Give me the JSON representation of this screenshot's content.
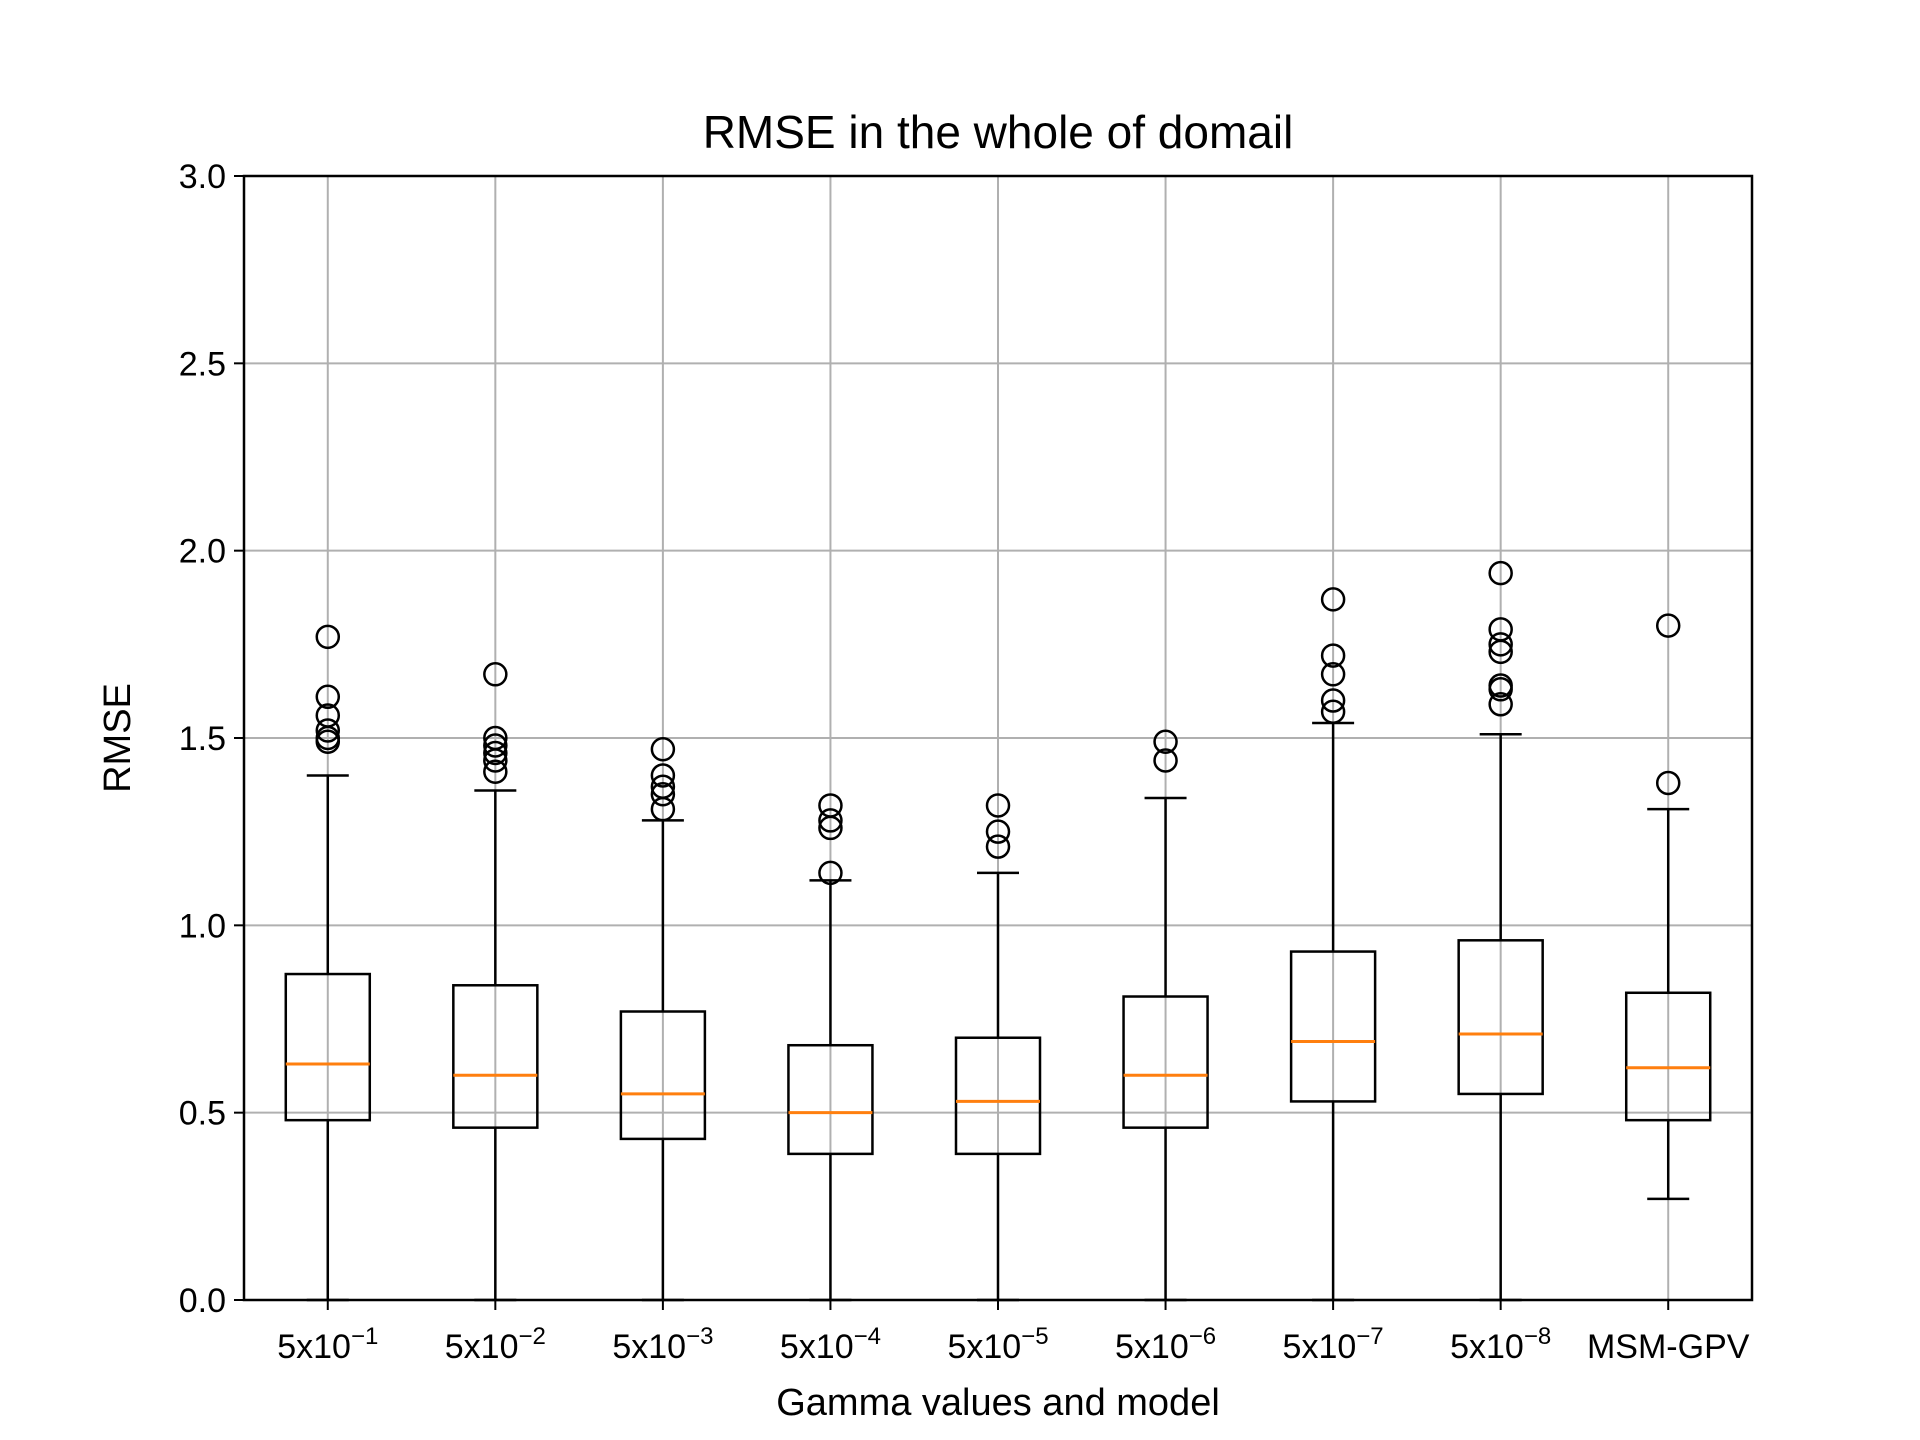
{
  "chart_data": {
    "type": "box",
    "title": "RMSE in the whole of domail",
    "xlabel": "Gamma values and model",
    "ylabel": "RMSE",
    "ylim": [
      0,
      3.0
    ],
    "yticks": [
      {
        "value": 0.0,
        "label": "0.0"
      },
      {
        "value": 0.5,
        "label": "0.5"
      },
      {
        "value": 1.0,
        "label": "1.0"
      },
      {
        "value": 1.5,
        "label": "1.5"
      },
      {
        "value": 2.0,
        "label": "2.0"
      },
      {
        "value": 2.5,
        "label": "2.5"
      },
      {
        "value": 3.0,
        "label": "3.0"
      }
    ],
    "grid": true,
    "colors": {
      "box": "#000000",
      "median": "#ff7f0e",
      "grid": "#b0b0b0"
    },
    "categories": [
      {
        "base": "5x10",
        "exp": "−1",
        "whislo": 0.0,
        "q1": 0.48,
        "med": 0.63,
        "q3": 0.87,
        "whishi": 1.4,
        "fliers": [
          1.49,
          1.5,
          1.52,
          1.56,
          1.61,
          1.77
        ]
      },
      {
        "base": "5x10",
        "exp": "−2",
        "whislo": 0.0,
        "q1": 0.46,
        "med": 0.6,
        "q3": 0.84,
        "whishi": 1.36,
        "fliers": [
          1.41,
          1.44,
          1.46,
          1.48,
          1.5,
          1.67
        ]
      },
      {
        "base": "5x10",
        "exp": "−3",
        "whislo": 0.0,
        "q1": 0.43,
        "med": 0.55,
        "q3": 0.77,
        "whishi": 1.28,
        "fliers": [
          1.31,
          1.35,
          1.37,
          1.4,
          1.47
        ]
      },
      {
        "base": "5x10",
        "exp": "−4",
        "whislo": 0.0,
        "q1": 0.39,
        "med": 0.5,
        "q3": 0.68,
        "whishi": 1.12,
        "fliers": [
          1.14,
          1.26,
          1.28,
          1.32
        ]
      },
      {
        "base": "5x10",
        "exp": "−5",
        "whislo": 0.0,
        "q1": 0.39,
        "med": 0.53,
        "q3": 0.7,
        "whishi": 1.14,
        "fliers": [
          1.21,
          1.25,
          1.32
        ]
      },
      {
        "base": "5x10",
        "exp": "−6",
        "whislo": 0.0,
        "q1": 0.46,
        "med": 0.6,
        "q3": 0.81,
        "whishi": 1.34,
        "fliers": [
          1.44,
          1.49
        ]
      },
      {
        "base": "5x10",
        "exp": "−7",
        "whislo": 0.0,
        "q1": 0.53,
        "med": 0.69,
        "q3": 0.93,
        "whishi": 1.54,
        "fliers": [
          1.57,
          1.6,
          1.67,
          1.72,
          1.87
        ]
      },
      {
        "base": "5x10",
        "exp": "−8",
        "whislo": 0.0,
        "q1": 0.55,
        "med": 0.71,
        "q3": 0.96,
        "whishi": 1.51,
        "fliers": [
          1.59,
          1.63,
          1.64,
          1.73,
          1.75,
          1.79,
          1.94
        ]
      },
      {
        "base": "MSM-GPV",
        "exp": "",
        "whislo": 0.27,
        "q1": 0.48,
        "med": 0.62,
        "q3": 0.82,
        "whishi": 1.31,
        "fliers": [
          1.38,
          1.8
        ]
      }
    ]
  }
}
